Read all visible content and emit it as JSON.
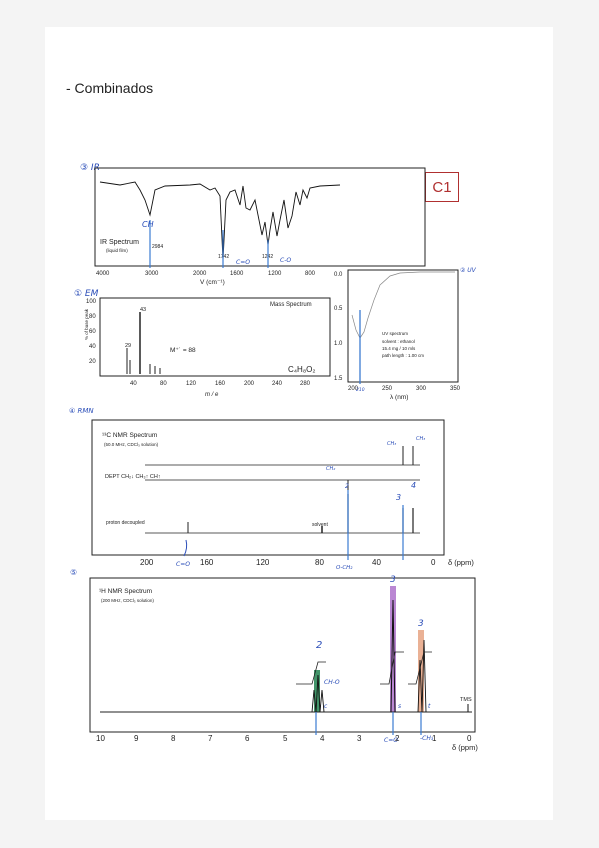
{
  "heading": "- Combinados",
  "label": "C1",
  "ir": {
    "marker": "③ IR",
    "title": "IR Spectrum",
    "subtitle": "(liquid film)",
    "peaks": [
      "2984",
      "1742",
      "1242"
    ],
    "x_ticks": [
      "4000",
      "3000",
      "2000",
      "1600",
      "1200",
      "800"
    ],
    "xlabel": "V (cm⁻¹)",
    "notes": {
      "ch": "CH",
      "co": "C=O",
      "co2": "C-O"
    }
  },
  "mass": {
    "marker": "① EM",
    "title": "Mass Spectrum",
    "ylabel": "% of base peak",
    "y_ticks": [
      "100",
      "80",
      "60",
      "40",
      "20"
    ],
    "x_ticks": [
      "40",
      "80",
      "120",
      "160",
      "200",
      "240",
      "280"
    ],
    "xlabel": "m / e",
    "peak_labels": [
      "43",
      "29"
    ],
    "molecular_ion": "M⁺˙ = 88",
    "formula": "C₄H₈O₂"
  },
  "uv": {
    "marker": "② UV",
    "y_ticks": [
      "0.0",
      "0.5",
      "1.0",
      "1.5"
    ],
    "x_ticks": [
      "200",
      "250",
      "300",
      "350"
    ],
    "xlabel": "λ (nm)",
    "info": [
      "UV spectrum",
      "solvent : ethanol",
      "15.4 mg / 10 mls",
      "path length : 1.00 cm"
    ],
    "note": "210"
  },
  "c13": {
    "marker": "④ RMN",
    "title": "¹³C NMR Spectrum",
    "subtitle": "(50.0 MHz, CDCl₃ solution)",
    "dept": "DEPT  CH₂↓   CH₃↑   CH↑",
    "proton": "proton decoupled",
    "solvent": "solvent",
    "x_ticks": [
      "200",
      "160",
      "120",
      "80",
      "40",
      "0"
    ],
    "xlabel": "δ (ppm)",
    "notes": {
      "ch3": "CH₃",
      "ch3b": "CH₃",
      "ch2": "CH₂",
      "two": "2",
      "three": "3",
      "four": "4",
      "co": "C=O",
      "och2": "O-CH₂"
    }
  },
  "h1": {
    "marker": "⑤",
    "title": "¹H NMR Spectrum",
    "subtitle": "(200 MHz, CDCl₃ solution)",
    "tms": "TMS",
    "x_ticks": [
      "10",
      "9",
      "8",
      "7",
      "6",
      "5",
      "4",
      "3",
      "2",
      "1",
      "0"
    ],
    "xlabel": "δ (ppm)",
    "notes": {
      "two": "2",
      "three": "3",
      "three_b": "3",
      "c": "c",
      "s": "s",
      "t": "t",
      "ch2o": "CH-O",
      "cs2": "C=O",
      "ch3": "-CH₃"
    }
  }
}
